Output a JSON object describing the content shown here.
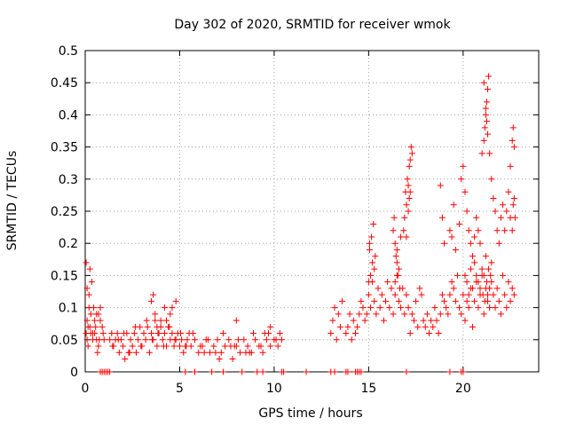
{
  "chart_data": {
    "type": "scatter",
    "title": "Day 302 of 2020, SRMTID for receiver wmok",
    "xlabel": "GPS time / hours",
    "ylabel": "SRMTID / TECUs",
    "xlim": [
      0,
      24
    ],
    "ylim": [
      0,
      0.5
    ],
    "xticks": [
      {
        "value": 0,
        "label": "0"
      },
      {
        "value": 5,
        "label": "5"
      },
      {
        "value": 10,
        "label": "10"
      },
      {
        "value": 15,
        "label": "15"
      },
      {
        "value": 20,
        "label": "20"
      }
    ],
    "yticks": [
      {
        "value": 0,
        "label": "0"
      },
      {
        "value": 0.05,
        "label": "0.05"
      },
      {
        "value": 0.1,
        "label": "0.1"
      },
      {
        "value": 0.15,
        "label": "0.15"
      },
      {
        "value": 0.2,
        "label": "0.2"
      },
      {
        "value": 0.25,
        "label": "0.25"
      },
      {
        "value": 0.3,
        "label": "0.3"
      },
      {
        "value": 0.35,
        "label": "0.35"
      },
      {
        "value": 0.4,
        "label": "0.4"
      },
      {
        "value": 0.45,
        "label": "0.45"
      },
      {
        "value": 0.5,
        "label": "0.5"
      }
    ],
    "grid": true,
    "marker": "+",
    "color": "#ff0000",
    "series": [
      {
        "name": "SRMTID",
        "x": [
          0.05,
          0.1,
          0.15,
          0.2,
          0.3,
          0.4,
          0.5,
          0.6,
          0.7,
          0.8,
          0.9,
          1.0,
          0.25,
          0.35,
          0.45,
          0.55,
          0.65,
          0.75,
          0.1,
          0.2,
          0.3,
          0.5,
          0.7,
          0.15,
          0.25,
          0.4,
          0.6,
          0.8,
          0.95,
          0.05,
          0.1,
          1.3,
          1.4,
          1.5,
          1.6,
          1.7,
          1.8,
          1.9,
          2.0,
          2.1,
          2.2,
          2.3,
          2.4,
          2.5,
          2.6,
          2.7,
          2.8,
          2.9,
          3.0,
          3.1,
          3.2,
          3.3,
          3.4,
          3.5,
          3.6,
          3.7,
          3.8,
          3.9,
          4.0,
          4.1,
          4.2,
          4.3,
          4.4,
          4.5,
          4.6,
          4.7,
          4.8,
          4.9,
          5.0,
          5.1,
          5.2,
          5.3,
          5.4,
          5.5,
          1.45,
          1.75,
          2.05,
          2.35,
          2.65,
          2.95,
          3.25,
          3.55,
          3.85,
          4.15,
          4.45,
          4.75,
          5.05,
          5.35,
          3.5,
          3.6,
          3.7,
          4.2,
          4.3,
          4.5,
          4.8,
          3.8,
          4.0,
          4.6,
          5.6,
          5.8,
          6.0,
          6.2,
          6.4,
          6.6,
          6.8,
          7.0,
          7.2,
          7.4,
          7.6,
          7.8,
          8.0,
          8.2,
          8.4,
          8.6,
          8.8,
          9.0,
          9.2,
          9.4,
          9.6,
          9.8,
          10.0,
          10.2,
          10.4,
          5.7,
          6.1,
          6.5,
          6.9,
          7.3,
          7.7,
          8.1,
          8.5,
          8.9,
          9.3,
          9.7,
          10.1,
          8.0,
          9.5,
          9.8,
          10.3,
          6.3,
          7.1,
          7.9,
          8.7,
          13.0,
          13.1,
          13.2,
          13.3,
          13.4,
          13.5,
          13.6,
          13.8,
          13.9,
          14.0,
          14.1,
          14.2,
          14.3,
          14.4,
          14.5,
          14.6,
          14.7,
          14.8,
          14.9,
          15.0,
          15.1,
          15.2,
          15.3,
          15.4,
          15.5,
          15.6,
          15.7,
          15.8,
          15.9,
          16.0,
          16.1,
          16.2,
          16.3,
          16.4,
          16.5,
          16.6,
          16.7,
          16.8,
          16.9,
          17.0,
          17.1,
          17.2,
          17.3,
          17.4,
          17.5,
          17.6,
          17.7,
          17.8,
          17.9,
          18.0,
          18.1,
          18.2,
          18.3,
          18.4,
          18.5,
          18.6,
          18.7,
          18.8,
          18.9,
          19.0,
          19.1,
          19.2,
          19.3,
          19.4,
          19.5,
          19.6,
          19.7,
          19.8,
          19.9,
          20.0,
          20.1,
          20.2,
          20.3,
          20.4,
          20.5,
          20.6,
          20.7,
          20.8,
          20.9,
          21.0,
          21.1,
          21.2,
          21.3,
          21.4,
          21.5,
          21.6,
          21.7,
          21.8,
          21.9,
          22.0,
          22.1,
          22.2,
          22.3,
          22.4,
          22.5,
          22.6,
          22.7,
          15.05,
          15.25,
          15.35,
          15.1,
          15.2,
          15.15,
          15.0,
          15.3,
          15.05,
          16.3,
          16.4,
          16.5,
          16.35,
          16.45,
          16.55,
          16.6,
          16.65,
          16.4,
          16.5,
          16.7,
          16.9,
          16.95,
          17.0,
          17.05,
          17.1,
          17.15,
          17.2,
          17.25,
          16.85,
          17.0,
          17.1,
          17.2,
          17.15,
          17.3,
          18.8,
          18.9,
          19.0,
          19.3,
          19.4,
          19.5,
          19.6,
          19.8,
          19.9,
          20.0,
          20.1,
          20.2,
          20.3,
          20.4,
          20.5,
          20.6,
          20.7,
          20.8,
          20.9,
          21.0,
          21.1,
          21.15,
          21.2,
          21.25,
          21.3,
          21.35,
          21.1,
          21.2,
          21.25,
          21.3,
          21.4,
          21.5,
          21.6,
          21.7,
          21.8,
          21.9,
          22.0,
          22.1,
          22.2,
          22.3,
          22.4,
          22.5,
          22.6,
          22.65,
          22.7,
          22.75,
          22.5,
          22.6,
          22.65,
          22.7,
          20.1,
          20.2,
          20.3,
          20.4,
          20.5,
          20.6,
          20.7,
          20.8,
          20.9,
          21.0,
          21.05,
          21.1,
          21.15,
          21.2,
          21.25,
          21.3,
          21.35,
          21.4,
          21.45,
          21.5,
          0.8,
          0.9,
          1.0,
          1.1,
          1.2,
          1.3,
          5.3,
          5.8,
          6.7,
          7.3,
          8.3,
          9.1,
          9.4,
          10.4,
          10.5,
          11.7,
          13.0,
          13.2,
          13.8,
          13.9,
          14.3,
          14.4,
          14.5,
          14.6,
          17.0,
          19.3,
          19.9,
          20.0
        ],
        "y": [
          0.06,
          0.08,
          0.07,
          0.12,
          0.09,
          0.05,
          0.06,
          0.09,
          0.04,
          0.08,
          0.07,
          0.05,
          0.16,
          0.14,
          0.1,
          0.07,
          0.03,
          0.05,
          0.05,
          0.1,
          0.06,
          0.08,
          0.09,
          0.04,
          0.07,
          0.06,
          0.05,
          0.1,
          0.06,
          0.17,
          0.13,
          0.05,
          0.06,
          0.04,
          0.05,
          0.06,
          0.03,
          0.05,
          0.04,
          0.02,
          0.06,
          0.03,
          0.05,
          0.04,
          0.06,
          0.03,
          0.05,
          0.07,
          0.04,
          0.06,
          0.05,
          0.07,
          0.03,
          0.06,
          0.05,
          0.08,
          0.04,
          0.06,
          0.07,
          0.05,
          0.06,
          0.04,
          0.07,
          0.05,
          0.06,
          0.04,
          0.05,
          0.06,
          0.04,
          0.05,
          0.03,
          0.04,
          0.05,
          0.06,
          0.04,
          0.05,
          0.06,
          0.03,
          0.07,
          0.04,
          0.08,
          0.05,
          0.06,
          0.04,
          0.07,
          0.05,
          0.06,
          0.04,
          0.11,
          0.12,
          0.09,
          0.1,
          0.08,
          0.09,
          0.11,
          0.07,
          0.08,
          0.1,
          0.04,
          0.05,
          0.03,
          0.04,
          0.05,
          0.03,
          0.04,
          0.05,
          0.03,
          0.04,
          0.05,
          0.02,
          0.04,
          0.03,
          0.05,
          0.04,
          0.03,
          0.05,
          0.04,
          0.03,
          0.05,
          0.04,
          0.05,
          0.04,
          0.05,
          0.06,
          0.04,
          0.05,
          0.03,
          0.06,
          0.04,
          0.05,
          0.03,
          0.06,
          0.04,
          0.06,
          0.05,
          0.08,
          0.06,
          0.07,
          0.06,
          0.03,
          0.02,
          0.04,
          0.03,
          0.06,
          0.08,
          0.1,
          0.05,
          0.09,
          0.07,
          0.11,
          0.06,
          0.07,
          0.09,
          0.05,
          0.08,
          0.06,
          0.07,
          0.09,
          0.11,
          0.1,
          0.08,
          0.09,
          0.12,
          0.1,
          0.14,
          0.11,
          0.09,
          0.13,
          0.1,
          0.12,
          0.08,
          0.11,
          0.14,
          0.1,
          0.13,
          0.09,
          0.12,
          0.15,
          0.11,
          0.1,
          0.13,
          0.09,
          0.12,
          0.1,
          0.06,
          0.09,
          0.08,
          0.11,
          0.07,
          0.13,
          0.12,
          0.08,
          0.07,
          0.09,
          0.06,
          0.08,
          0.07,
          0.1,
          0.08,
          0.06,
          0.09,
          0.12,
          0.11,
          0.1,
          0.09,
          0.12,
          0.14,
          0.13,
          0.11,
          0.15,
          0.1,
          0.09,
          0.12,
          0.08,
          0.11,
          0.1,
          0.13,
          0.07,
          0.11,
          0.14,
          0.1,
          0.12,
          0.15,
          0.09,
          0.13,
          0.11,
          0.1,
          0.14,
          0.12,
          0.1,
          0.13,
          0.11,
          0.09,
          0.15,
          0.12,
          0.1,
          0.14,
          0.11,
          0.13,
          0.12,
          0.2,
          0.23,
          0.18,
          0.15,
          0.17,
          0.21,
          0.14,
          0.16,
          0.19,
          0.22,
          0.2,
          0.17,
          0.24,
          0.18,
          0.15,
          0.16,
          0.13,
          0.14,
          0.19,
          0.21,
          0.24,
          0.28,
          0.26,
          0.3,
          0.29,
          0.27,
          0.33,
          0.35,
          0.22,
          0.21,
          0.25,
          0.28,
          0.32,
          0.34,
          0.29,
          0.24,
          0.2,
          0.22,
          0.21,
          0.26,
          0.19,
          0.23,
          0.3,
          0.32,
          0.28,
          0.25,
          0.22,
          0.2,
          0.18,
          0.21,
          0.24,
          0.22,
          0.2,
          0.34,
          0.36,
          0.38,
          0.4,
          0.42,
          0.44,
          0.46,
          0.45,
          0.41,
          0.39,
          0.37,
          0.34,
          0.3,
          0.27,
          0.25,
          0.22,
          0.2,
          0.24,
          0.26,
          0.22,
          0.25,
          0.28,
          0.24,
          0.22,
          0.26,
          0.27,
          0.24,
          0.32,
          0.36,
          0.38,
          0.35,
          0.15,
          0.14,
          0.12,
          0.16,
          0.13,
          0.17,
          0.15,
          0.14,
          0.13,
          0.16,
          0.12,
          0.15,
          0.11,
          0.18,
          0.14,
          0.12,
          0.16,
          0.13,
          0.15,
          0.17,
          0.0,
          0.0,
          0.0,
          0.0,
          0.0,
          0.0,
          0.0,
          0.0,
          0.0,
          0.0,
          0.0,
          0.0,
          0.0,
          0.0,
          0.0,
          0.0,
          0.0,
          0.0,
          0.0,
          0.0,
          0.0,
          0.0,
          0.0,
          0.0,
          0.0,
          0.0,
          0.0,
          0.0
        ]
      }
    ]
  }
}
